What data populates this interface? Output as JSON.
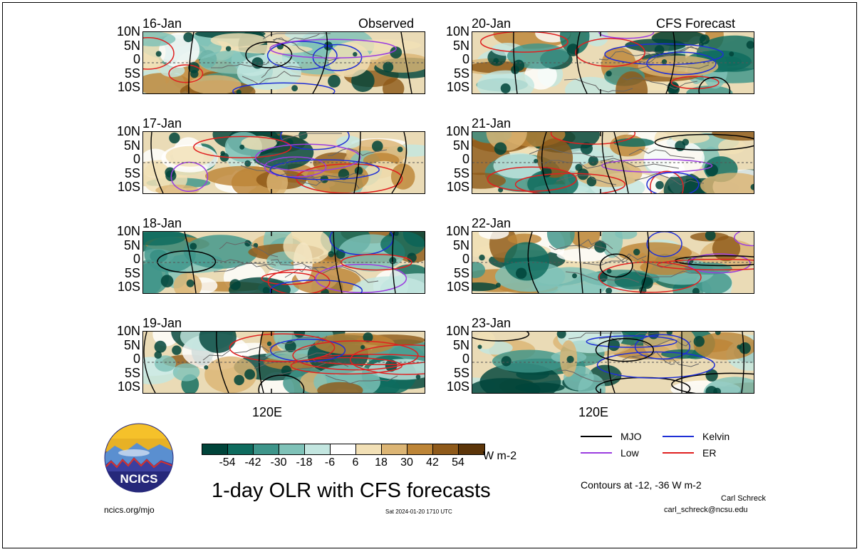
{
  "header": {
    "left_title": "Observed",
    "right_title": "CFS Forecast"
  },
  "lat_labels": [
    "10N",
    "5N",
    "0",
    "5S",
    "10S"
  ],
  "x_tick_label": "120E",
  "panels": {
    "observed": [
      {
        "date": "16-Jan"
      },
      {
        "date": "17-Jan"
      },
      {
        "date": "18-Jan"
      },
      {
        "date": "19-Jan"
      }
    ],
    "forecast": [
      {
        "date": "20-Jan"
      },
      {
        "date": "21-Jan"
      },
      {
        "date": "22-Jan"
      },
      {
        "date": "23-Jan"
      }
    ]
  },
  "colorbar": {
    "ticks": [
      "-54",
      "-42",
      "-30",
      "-18",
      "-6",
      "6",
      "18",
      "30",
      "42",
      "54"
    ],
    "unit": "W m-2",
    "colors": [
      "#00443a",
      "#0e6b5e",
      "#3e958a",
      "#7fc2b8",
      "#c3e6e0",
      "#ffffff",
      "#f2e0b6",
      "#dcb574",
      "#bd8537",
      "#8f5a1a",
      "#5c3509"
    ]
  },
  "title": "1-day OLR with CFS forecasts",
  "logo": {
    "text": "NCICS"
  },
  "site": "ncics.org/mjo",
  "timestamp": "Sat 2024-01-20 1710 UTC",
  "legend": {
    "items": [
      {
        "label": "MJO",
        "color": "#000000"
      },
      {
        "label": "Kelvin",
        "color": "#1f2fd6"
      },
      {
        "label": "Low",
        "color": "#9b3de0"
      },
      {
        "label": "ER",
        "color": "#e02020"
      }
    ],
    "contours_note": "Contours at -12, -36 W m-2",
    "author": "Carl Schreck",
    "email": "carl_schreck@ncsu.edu"
  }
}
